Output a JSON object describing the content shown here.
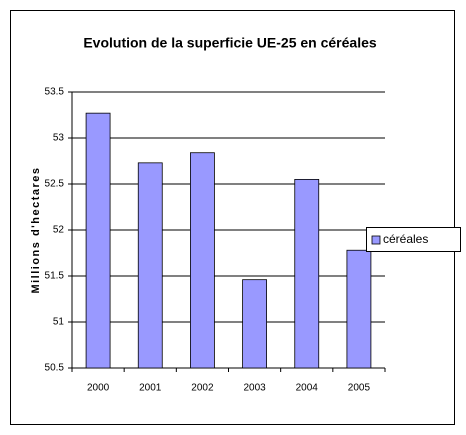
{
  "chart_data": {
    "type": "bar",
    "title": "Evolution de la superficie UE-25 en céréales",
    "y_label": "Millions d'hectares",
    "categories": [
      "2000",
      "2001",
      "2002",
      "2003",
      "2004",
      "2005"
    ],
    "series": [
      {
        "name": "céréales",
        "color": "#9999ff",
        "values": [
          53.27,
          52.73,
          52.84,
          51.46,
          52.55,
          51.78
        ]
      }
    ],
    "ylim": [
      50.5,
      53.5
    ],
    "yticks": [
      50.5,
      51,
      51.5,
      52,
      52.5,
      53,
      53.5
    ],
    "grid": true,
    "legend": "right"
  }
}
